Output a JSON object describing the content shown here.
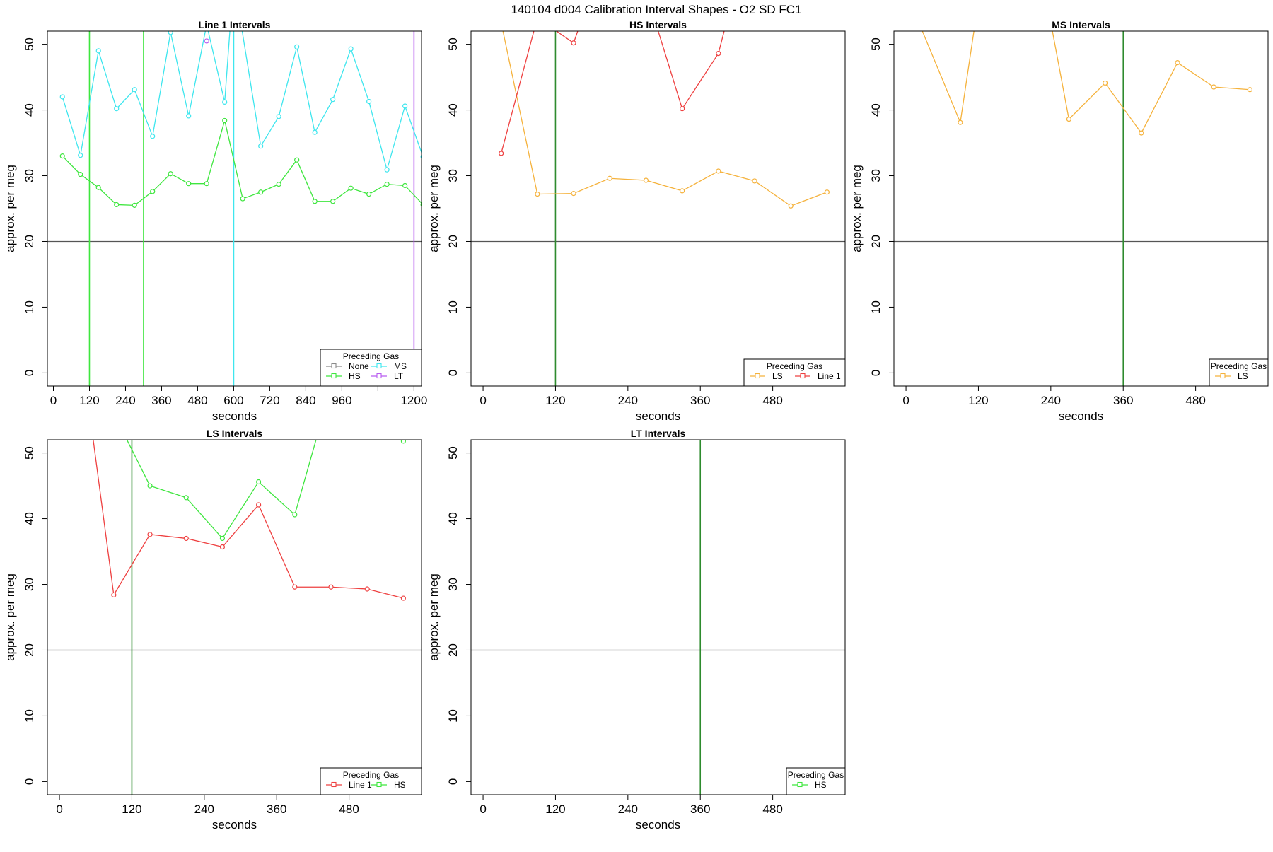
{
  "figure": {
    "title": "140104   d004   Calibration Interval Shapes - O2 SD FC1"
  },
  "colors": {
    "None": "#8a8a8a",
    "HS": "#3ee63e",
    "MS": "#3ee6ee",
    "LT": "#b85cf0",
    "LS": "#f5b23c",
    "Line 1": "#ee4040",
    "hline": "#555555",
    "vline_dark": "#2e8b2e"
  },
  "chart_data": [
    {
      "type": "line",
      "title": "Line 1 Intervals",
      "xlabel": "seconds",
      "ylabel": "approx. per meg",
      "xlim": [
        -20,
        1225
      ],
      "ylim": [
        -2,
        52
      ],
      "xticks": [
        0,
        120,
        240,
        360,
        480,
        600,
        720,
        840,
        960,
        1080,
        1200
      ],
      "xtick_labels": [
        "0",
        "120",
        "240",
        "360",
        "480",
        "600",
        "720",
        "840",
        "960",
        "",
        "1200"
      ],
      "yticks": [
        0,
        10,
        20,
        30,
        40,
        50
      ],
      "hline": 20,
      "vlines": [
        {
          "x": 120,
          "color": "HS"
        },
        {
          "x": 300,
          "color": "HS"
        },
        {
          "x": 600,
          "color": "MS"
        },
        {
          "x": 1200,
          "color": "LT"
        }
      ],
      "legend": {
        "title": "Preceding Gas",
        "entries": [
          "None",
          "HS",
          "MS",
          "LT"
        ],
        "columns": 2,
        "position": "bottom-right"
      },
      "series": [
        {
          "name": "HS",
          "x": [
            30,
            90,
            150,
            210,
            270,
            330,
            390,
            450,
            510,
            570,
            630,
            690,
            750,
            810,
            870,
            930,
            990,
            1050,
            1110,
            1170,
            1230
          ],
          "y": [
            33,
            30.2,
            28.2,
            25.6,
            25.5,
            27.6,
            30.3,
            28.8,
            28.8,
            38.4,
            26.5,
            27.5,
            28.7,
            32.4,
            26.1,
            26.1,
            28.1,
            27.2,
            28.7,
            28.5,
            25.6
          ]
        },
        {
          "name": "MS",
          "x": [
            30,
            90,
            150,
            210,
            270,
            330,
            390,
            450,
            510,
            570,
            600,
            690,
            750,
            810,
            870,
            930,
            990,
            1050,
            1110,
            1170,
            1230
          ],
          "y": [
            42,
            33.1,
            49,
            40.2,
            43.1,
            36,
            51.8,
            39.1,
            53,
            41.2,
            60,
            34.5,
            39,
            49.6,
            36.6,
            41.6,
            49.3,
            41.3,
            30.9,
            40.6,
            32.9
          ]
        },
        {
          "name": "LT",
          "x": [
            510
          ],
          "y": [
            50.5
          ]
        }
      ]
    },
    {
      "type": "line",
      "title": "HS Intervals",
      "xlabel": "seconds",
      "ylabel": "approx. per meg",
      "xlim": [
        -20,
        600
      ],
      "ylim": [
        -2,
        52
      ],
      "xticks": [
        0,
        120,
        240,
        360,
        480
      ],
      "xtick_labels": [
        "0",
        "120",
        "240",
        "360",
        "480"
      ],
      "yticks": [
        0,
        10,
        20,
        30,
        40,
        50
      ],
      "hline": 20,
      "vlines": [
        {
          "x": 120,
          "color": "vline_dark"
        }
      ],
      "legend": {
        "title": "Preceding Gas",
        "entries": [
          "LS",
          "Line 1"
        ],
        "columns": 2,
        "position": "bottom-right"
      },
      "series": [
        {
          "name": "LS",
          "x": [
            -20,
            90,
            150,
            210,
            270,
            330,
            390,
            450,
            510,
            570
          ],
          "y": [
            75,
            27.2,
            27.3,
            29.6,
            29.3,
            27.7,
            30.7,
            29.2,
            25.4,
            27.5
          ]
        },
        {
          "name": "Line 1",
          "x": [
            30,
            90,
            150,
            210,
            270,
            330,
            390,
            450
          ],
          "y": [
            33.4,
            54,
            50.2,
            66,
            58,
            40.2,
            48.6,
            70
          ]
        }
      ]
    },
    {
      "type": "line",
      "title": "MS Intervals",
      "xlabel": "seconds",
      "ylabel": "approx. per meg",
      "xlim": [
        -20,
        600
      ],
      "ylim": [
        -2,
        52
      ],
      "xticks": [
        0,
        120,
        240,
        360,
        480
      ],
      "xtick_labels": [
        "0",
        "120",
        "240",
        "360",
        "480"
      ],
      "yticks": [
        0,
        10,
        20,
        30,
        40,
        50
      ],
      "hline": 20,
      "vlines": [
        {
          "x": 360,
          "color": "vline_dark"
        }
      ],
      "legend": {
        "title": "Preceding Gas",
        "entries": [
          "LS"
        ],
        "columns": 1,
        "position": "bottom-right"
      },
      "series": [
        {
          "name": "LS",
          "x": [
            0,
            90,
            150,
            210,
            270,
            330,
            390,
            450,
            510,
            570
          ],
          "y": [
            58,
            38.1,
            75,
            68,
            38.6,
            44.1,
            36.5,
            47.2,
            43.5,
            43.1
          ]
        }
      ]
    },
    {
      "type": "line",
      "title": "LS Intervals",
      "xlabel": "seconds",
      "ylabel": "approx. per meg",
      "xlim": [
        -20,
        600
      ],
      "ylim": [
        -2,
        52
      ],
      "xticks": [
        0,
        120,
        240,
        360,
        480
      ],
      "xtick_labels": [
        "0",
        "120",
        "240",
        "360",
        "480"
      ],
      "yticks": [
        0,
        10,
        20,
        30,
        40,
        50
      ],
      "hline": 20,
      "vlines": [
        {
          "x": 120,
          "color": "vline_dark"
        }
      ],
      "legend": {
        "title": "Preceding Gas",
        "entries": [
          "Line 1",
          "HS"
        ],
        "columns": 2,
        "position": "bottom-right"
      },
      "series": [
        {
          "name": "Line 1",
          "x": [
            30,
            90,
            150,
            210,
            270,
            330,
            390,
            450,
            510,
            570
          ],
          "y": [
            70,
            28.4,
            37.6,
            37,
            35.7,
            42.1,
            29.6,
            29.6,
            29.3,
            27.9
          ]
        },
        {
          "name": "HS",
          "x": [
            30,
            90,
            150,
            210,
            270,
            330,
            390,
            450,
            510,
            570
          ],
          "y": [
            70,
            56,
            45,
            43.2,
            37,
            45.6,
            40.6,
            60,
            75,
            51.8
          ]
        }
      ]
    },
    {
      "type": "line",
      "title": "LT Intervals",
      "xlabel": "seconds",
      "ylabel": "approx. per meg",
      "xlim": [
        -20,
        600
      ],
      "ylim": [
        -2,
        52
      ],
      "xticks": [
        0,
        120,
        240,
        360,
        480
      ],
      "xtick_labels": [
        "0",
        "120",
        "240",
        "360",
        "480"
      ],
      "yticks": [
        0,
        10,
        20,
        30,
        40,
        50
      ],
      "hline": 20,
      "vlines": [
        {
          "x": 360,
          "color": "vline_dark"
        }
      ],
      "legend": {
        "title": "Preceding Gas",
        "entries": [
          "HS"
        ],
        "columns": 1,
        "position": "bottom-right"
      },
      "series": []
    }
  ]
}
